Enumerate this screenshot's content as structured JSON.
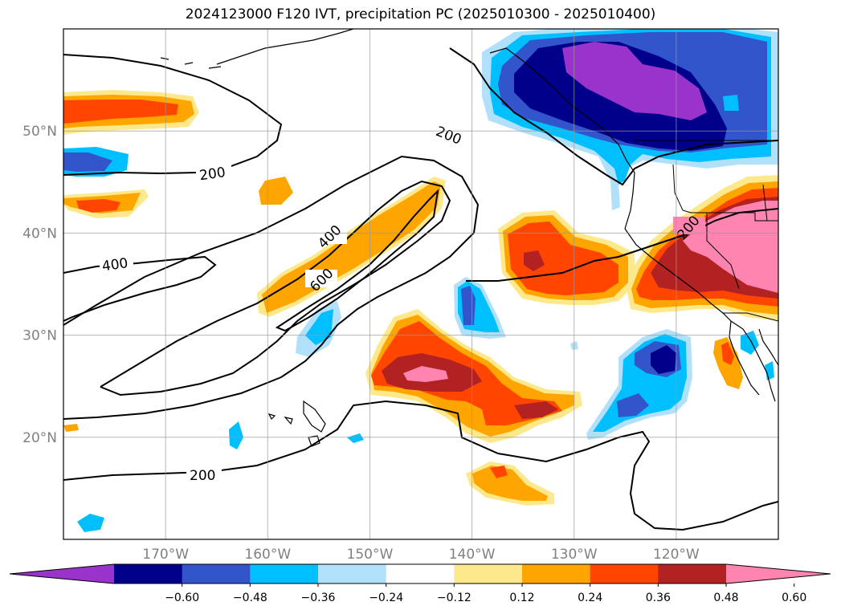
{
  "title": "2024123000 F120 IVT, precipitation PC (2025010300 - 2025010400)",
  "map": {
    "lon_range": [
      -180,
      -110
    ],
    "lat_range": [
      10,
      60
    ],
    "lon_ticks": [
      "170°W",
      "160°W",
      "150°W",
      "140°W",
      "130°W",
      "120°W"
    ],
    "lat_ticks": [
      "20°N",
      "30°N",
      "40°N",
      "50°N"
    ],
    "gridlines": true
  },
  "colorbar": {
    "orientation": "horizontal",
    "extend": "both",
    "levels": [
      "−0.60",
      "−0.48",
      "−0.36",
      "−0.24",
      "−0.12",
      "0.12",
      "0.24",
      "0.36",
      "0.48",
      "0.60"
    ],
    "colors": [
      "#9933cc",
      "#00008b",
      "#3355cc",
      "#00bfff",
      "#b0e0fa",
      "#ffffff",
      "#fde98c",
      "#ffa500",
      "#ff4500",
      "#b22222",
      "#ff85b0"
    ]
  },
  "contours": {
    "field": "IVT",
    "labels": [
      "200",
      "200",
      "200",
      "200",
      "400",
      "400",
      "600"
    ]
  }
}
